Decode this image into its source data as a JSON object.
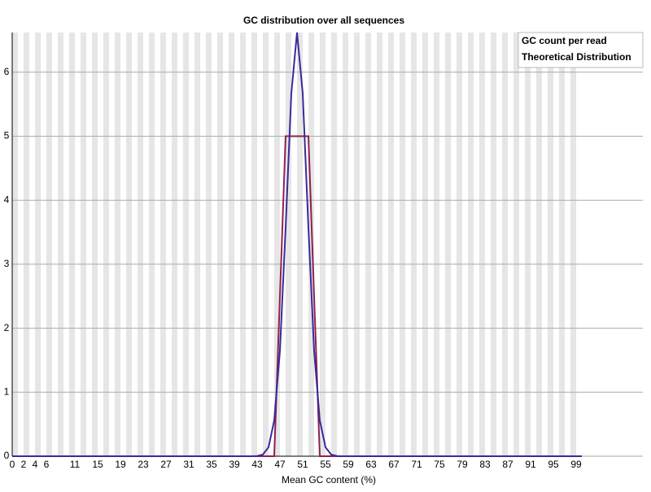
{
  "chart_data": {
    "type": "line",
    "title": "GC distribution over all sequences",
    "x_label": "Mean GC content (%)",
    "x": [
      0,
      1,
      2,
      3,
      4,
      5,
      6,
      7,
      8,
      9,
      10,
      11,
      12,
      13,
      14,
      15,
      16,
      17,
      18,
      19,
      20,
      21,
      22,
      23,
      24,
      25,
      26,
      27,
      28,
      29,
      30,
      31,
      32,
      33,
      34,
      35,
      36,
      37,
      38,
      39,
      40,
      41,
      42,
      43,
      44,
      45,
      46,
      47,
      48,
      49,
      50,
      51,
      52,
      53,
      54,
      55,
      56,
      57,
      58,
      59,
      60,
      61,
      62,
      63,
      64,
      65,
      66,
      67,
      68,
      69,
      70,
      71,
      72,
      73,
      74,
      75,
      76,
      77,
      78,
      79,
      80,
      81,
      82,
      83,
      84,
      85,
      86,
      87,
      88,
      89,
      90,
      91,
      92,
      93,
      94,
      95,
      96,
      97,
      98,
      99,
      100
    ],
    "series": [
      {
        "name": "GC count per read",
        "color": "#8b2252",
        "values": [
          0,
          0,
          0,
          0,
          0,
          0,
          0,
          0,
          0,
          0,
          0,
          0,
          0,
          0,
          0,
          0,
          0,
          0,
          0,
          0,
          0,
          0,
          0,
          0,
          0,
          0,
          0,
          0,
          0,
          0,
          0,
          0,
          0,
          0,
          0,
          0,
          0,
          0,
          0,
          0,
          0,
          0,
          0,
          0,
          0,
          0,
          0,
          2.5,
          5,
          5,
          5,
          5,
          5,
          2.5,
          0,
          0,
          0,
          0,
          0,
          0,
          0,
          0,
          0,
          0,
          0,
          0,
          0,
          0,
          0,
          0,
          0,
          0,
          0,
          0,
          0,
          0,
          0,
          0,
          0,
          0,
          0,
          0,
          0,
          0,
          0,
          0,
          0,
          0,
          0,
          0,
          0,
          0,
          0,
          0,
          0,
          0,
          0,
          0,
          0,
          0,
          0
        ]
      },
      {
        "name": "Theoretical Distribution",
        "color": "#3a2a9a",
        "values": [
          0,
          0,
          0,
          0,
          0,
          0,
          0,
          0,
          0,
          0,
          0,
          0,
          0,
          0,
          0,
          0,
          0,
          0,
          0,
          0,
          0,
          0,
          0,
          0,
          0,
          0,
          0,
          0,
          0,
          0,
          0,
          0,
          0,
          0,
          0,
          0,
          0,
          0,
          0,
          0,
          0,
          0,
          0,
          0.003,
          0.026,
          0.14,
          0.56,
          1.65,
          3.57,
          5.67,
          6.62,
          5.67,
          3.57,
          1.65,
          0.56,
          0.14,
          0.026,
          0.003,
          0,
          0,
          0,
          0,
          0,
          0,
          0,
          0,
          0,
          0,
          0,
          0,
          0,
          0,
          0,
          0,
          0,
          0,
          0,
          0,
          0,
          0,
          0,
          0,
          0,
          0,
          0,
          0,
          0,
          0,
          0,
          0,
          0,
          0,
          0,
          0,
          0,
          0,
          0,
          0,
          0,
          0,
          0
        ]
      }
    ],
    "xlim": [
      0,
      100
    ],
    "xticks": [
      0,
      2,
      4,
      6,
      11,
      15,
      19,
      23,
      27,
      31,
      35,
      39,
      43,
      47,
      51,
      55,
      59,
      63,
      67,
      71,
      75,
      79,
      83,
      87,
      91,
      95,
      99
    ],
    "ylim": [
      0,
      6.62
    ],
    "yticks": [
      0,
      1,
      2,
      3,
      4,
      5,
      6
    ],
    "grid": true,
    "legend": "top-right"
  }
}
